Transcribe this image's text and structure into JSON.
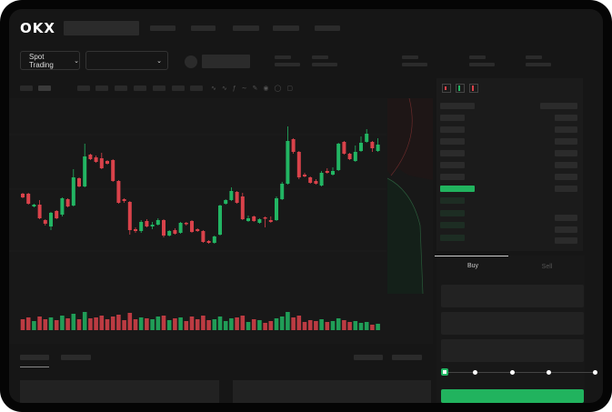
{
  "header": {
    "logo": "OKX"
  },
  "market_bar": {
    "mode_label": "Spot Trading",
    "pair_selector_value": ""
  },
  "trade": {
    "tabs": [
      {
        "label": "Buy",
        "active": true
      },
      {
        "label": "Sell",
        "active": false
      }
    ],
    "slider_percent": 0,
    "submit_color": "#21b35e"
  },
  "colors": {
    "up": "#22b563",
    "down": "#d9424a",
    "background": "#161616"
  },
  "chart_data": {
    "type": "candlestick",
    "candles": [
      [
        97,
        93,
        98,
        92
      ],
      [
        97,
        86,
        98,
        85
      ],
      [
        83,
        85,
        86,
        82
      ],
      [
        85,
        70,
        90,
        69
      ],
      [
        68,
        64,
        69,
        62
      ],
      [
        61,
        76,
        77,
        57
      ],
      [
        78,
        70,
        79,
        69
      ],
      [
        74,
        92,
        93,
        72
      ],
      [
        91,
        83,
        92,
        82
      ],
      [
        84,
        115,
        124,
        83
      ],
      [
        114,
        105,
        115,
        104
      ],
      [
        105,
        138,
        152,
        104
      ],
      [
        140,
        135,
        141,
        134
      ],
      [
        137,
        132,
        139,
        131
      ],
      [
        136,
        125,
        142,
        124
      ],
      [
        133,
        130,
        134,
        129
      ],
      [
        134,
        111,
        135,
        110
      ],
      [
        111,
        87,
        112,
        86
      ],
      [
        91,
        89,
        92,
        87
      ],
      [
        88,
        57,
        89,
        52
      ],
      [
        58,
        56,
        60,
        54
      ],
      [
        56,
        66,
        68,
        54
      ],
      [
        67,
        61,
        69,
        60
      ],
      [
        61,
        63,
        66,
        58
      ],
      [
        63,
        68,
        70,
        62
      ],
      [
        68,
        51,
        69,
        49
      ],
      [
        51,
        56,
        57,
        50
      ],
      [
        57,
        53,
        59,
        52
      ],
      [
        54,
        65,
        66,
        53
      ],
      [
        65,
        64,
        66,
        62
      ],
      [
        67,
        55,
        68,
        54
      ],
      [
        58,
        56,
        59,
        55
      ],
      [
        56,
        44,
        57,
        43
      ],
      [
        45,
        43,
        46,
        42
      ],
      [
        43,
        50,
        51,
        42
      ],
      [
        52,
        84,
        85,
        51
      ],
      [
        86,
        90,
        91,
        85
      ],
      [
        90,
        100,
        104,
        89
      ],
      [
        99,
        87,
        100,
        86
      ],
      [
        94,
        69,
        98,
        68
      ],
      [
        67,
        70,
        73,
        66
      ],
      [
        72,
        67,
        73,
        66
      ],
      [
        65,
        69,
        70,
        64
      ],
      [
        71,
        70,
        72,
        60
      ],
      [
        68,
        66,
        72,
        65
      ],
      [
        68,
        92,
        94,
        67
      ],
      [
        91,
        108,
        110,
        90
      ],
      [
        108,
        155,
        171,
        107
      ],
      [
        157,
        143,
        158,
        141
      ],
      [
        143,
        115,
        144,
        113
      ],
      [
        118,
        116,
        120,
        115
      ],
      [
        115,
        109,
        116,
        108
      ],
      [
        111,
        108,
        113,
        107
      ],
      [
        106,
        120,
        122,
        105
      ],
      [
        122,
        120,
        125,
        119
      ],
      [
        118,
        122,
        126,
        117
      ],
      [
        123,
        152,
        153,
        122
      ],
      [
        154,
        141,
        155,
        140
      ],
      [
        141,
        135,
        142,
        134
      ],
      [
        133,
        143,
        150,
        132
      ],
      [
        144,
        153,
        160,
        143
      ],
      [
        154,
        163,
        168,
        153
      ],
      [
        154,
        147,
        155,
        143
      ],
      [
        144,
        151,
        158,
        143
      ]
    ],
    "volume": [
      12,
      14,
      10,
      15,
      12,
      14,
      11,
      16,
      13,
      18,
      12,
      20,
      13,
      14,
      16,
      12,
      15,
      17,
      11,
      19,
      12,
      14,
      13,
      12,
      15,
      16,
      11,
      13,
      14,
      10,
      15,
      12,
      16,
      11,
      12,
      15,
      10,
      13,
      14,
      16,
      9,
      12,
      11,
      8,
      10,
      13,
      15,
      20,
      14,
      16,
      9,
      11,
      10,
      12,
      9,
      10,
      13,
      11,
      9,
      10,
      8,
      9,
      6,
      7
    ],
    "grid": true
  }
}
